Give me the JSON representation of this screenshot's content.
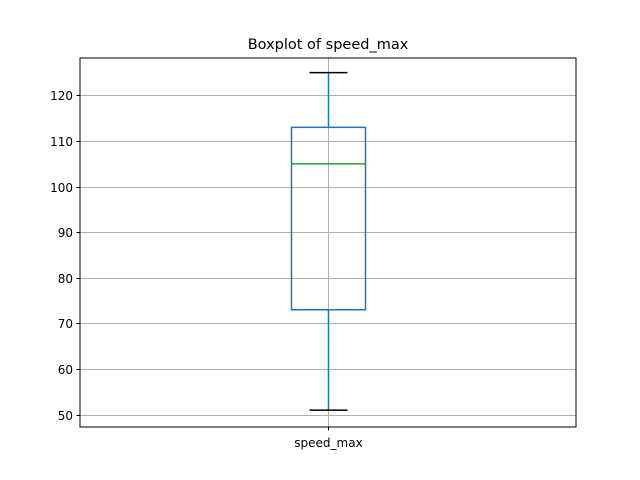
{
  "chart_data": {
    "type": "box",
    "title": "Boxplot of speed_max",
    "xlabel": "",
    "ylabel": "",
    "categories": [
      "speed_max"
    ],
    "boxes": [
      {
        "name": "speed_max",
        "whisker_low": 51,
        "q1": 73,
        "median": 105,
        "q3": 113,
        "whisker_high": 125
      }
    ],
    "yticks": [
      50,
      60,
      70,
      80,
      90,
      100,
      110,
      120
    ],
    "ylim": [
      47.3,
      128.2
    ],
    "grid": true,
    "colors": {
      "box": "#1f77b4",
      "whisker": "#1f77b4",
      "cap": "#000000",
      "median": "#2ca02c",
      "grid": "#b0b0b0"
    }
  }
}
